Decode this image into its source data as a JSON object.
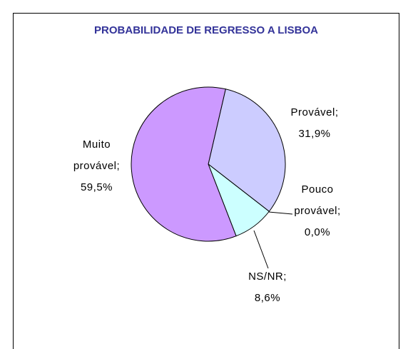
{
  "chart_data": {
    "type": "pie",
    "title": "PROBABILIDADE DE REGRESSO A LISBOA",
    "categories": [
      "Provável;",
      "Pouco provável;",
      "NS/NR;",
      "Muito provável;"
    ],
    "values": [
      31.9,
      0.0,
      8.6,
      59.5
    ],
    "value_labels": [
      "31,9%",
      "0,0%",
      "8,6%",
      "59,5%"
    ],
    "colors": [
      "#ccccff",
      "#ffffcc",
      "#ccffff",
      "#cc99ff"
    ]
  }
}
